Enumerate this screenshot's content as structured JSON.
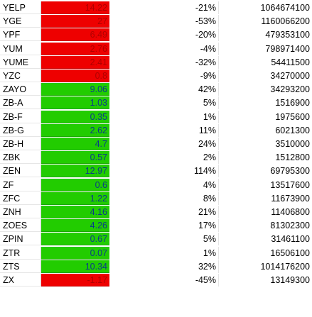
{
  "rows": [
    {
      "ticker": "YELP",
      "value": "14.22",
      "change": "-21%",
      "volume": "1064674100",
      "status": "neg"
    },
    {
      "ticker": "YGE",
      "value": "27",
      "change": "-53%",
      "volume": "1160066200",
      "status": "neg"
    },
    {
      "ticker": "YPF",
      "value": "6.49",
      "change": "-20%",
      "volume": "479353100",
      "status": "neg"
    },
    {
      "ticker": "YUM",
      "value": "2.76",
      "change": "-4%",
      "volume": "798971400",
      "status": "neg"
    },
    {
      "ticker": "YUME",
      "value": "2.41",
      "change": "-32%",
      "volume": "54411500",
      "status": "neg"
    },
    {
      "ticker": "YZC",
      "value": "0.8",
      "change": "-9%",
      "volume": "34270000",
      "status": "neg"
    },
    {
      "ticker": "ZAYO",
      "value": "9.06",
      "change": "42%",
      "volume": "34293200",
      "status": "pos"
    },
    {
      "ticker": "ZB-A",
      "value": "1.03",
      "change": "5%",
      "volume": "1516900",
      "status": "pos"
    },
    {
      "ticker": "ZB-F",
      "value": "0.35",
      "change": "1%",
      "volume": "1975600",
      "status": "pos"
    },
    {
      "ticker": "ZB-G",
      "value": "2.62",
      "change": "11%",
      "volume": "6021300",
      "status": "pos"
    },
    {
      "ticker": "ZB-H",
      "value": "4.7",
      "change": "24%",
      "volume": "3510000",
      "status": "pos"
    },
    {
      "ticker": "ZBK",
      "value": "0.57",
      "change": "2%",
      "volume": "1512800",
      "status": "pos"
    },
    {
      "ticker": "ZEN",
      "value": "12.97",
      "change": "114%",
      "volume": "69795300",
      "status": "pos"
    },
    {
      "ticker": "ZF",
      "value": "0.6",
      "change": "4%",
      "volume": "13517600",
      "status": "pos"
    },
    {
      "ticker": "ZFC",
      "value": "1.22",
      "change": "8%",
      "volume": "11673900",
      "status": "pos"
    },
    {
      "ticker": "ZNH",
      "value": "4.16",
      "change": "21%",
      "volume": "11406800",
      "status": "pos"
    },
    {
      "ticker": "ZOES",
      "value": "4.26",
      "change": "17%",
      "volume": "81302300",
      "status": "pos"
    },
    {
      "ticker": "ZPIN",
      "value": "0.67",
      "change": "5%",
      "volume": "31461100",
      "status": "pos"
    },
    {
      "ticker": "ZTR",
      "value": "0.07",
      "change": "1%",
      "volume": "16506100",
      "status": "pos"
    },
    {
      "ticker": "ZTS",
      "value": "10.34",
      "change": "32%",
      "volume": "1014176200",
      "status": "pos"
    },
    {
      "ticker": "ZX",
      "value": "-1.17",
      "change": "-45%",
      "volume": "13149300",
      "status": "neg"
    }
  ],
  "colors": {
    "positive": "#22cc00",
    "negative": "#ee0000"
  }
}
